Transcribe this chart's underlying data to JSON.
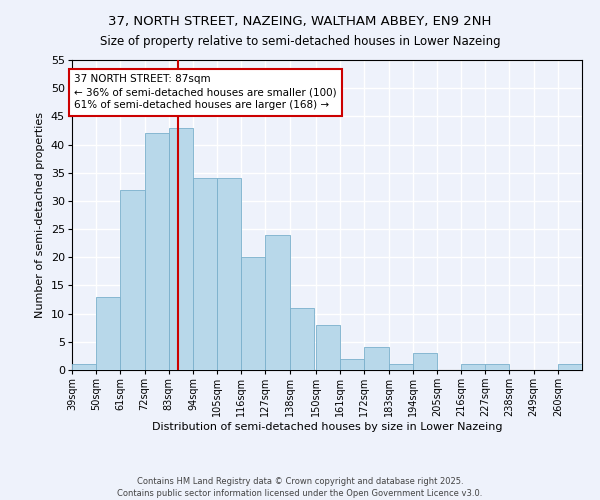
{
  "title": "37, NORTH STREET, NAZEING, WALTHAM ABBEY, EN9 2NH",
  "subtitle": "Size of property relative to semi-detached houses in Lower Nazeing",
  "xlabel": "Distribution of semi-detached houses by size in Lower Nazeing",
  "ylabel": "Number of semi-detached properties",
  "bin_labels": [
    "39sqm",
    "50sqm",
    "61sqm",
    "72sqm",
    "83sqm",
    "94sqm",
    "105sqm",
    "116sqm",
    "127sqm",
    "138sqm",
    "150sqm",
    "161sqm",
    "172sqm",
    "183sqm",
    "194sqm",
    "205sqm",
    "216sqm",
    "227sqm",
    "238sqm",
    "249sqm",
    "260sqm"
  ],
  "bin_edges": [
    39,
    50,
    61,
    72,
    83,
    94,
    105,
    116,
    127,
    138,
    150,
    161,
    172,
    183,
    194,
    205,
    216,
    227,
    238,
    249,
    260
  ],
  "counts": [
    1,
    13,
    32,
    42,
    43,
    34,
    34,
    20,
    24,
    11,
    8,
    2,
    4,
    1,
    3,
    0,
    1,
    1,
    0,
    0,
    1
  ],
  "bar_color": "#b8d8ea",
  "bar_edge_color": "#7ab0cc",
  "vline_x": 87,
  "vline_color": "#cc0000",
  "annotation_line1": "37 NORTH STREET: 87sqm",
  "annotation_line2": "← 36% of semi-detached houses are smaller (100)",
  "annotation_line3": "61% of semi-detached houses are larger (168) →",
  "annotation_box_color": "white",
  "annotation_box_edge": "#cc0000",
  "ylim": [
    0,
    55
  ],
  "yticks": [
    0,
    5,
    10,
    15,
    20,
    25,
    30,
    35,
    40,
    45,
    50,
    55
  ],
  "footer": "Contains HM Land Registry data © Crown copyright and database right 2025.\nContains public sector information licensed under the Open Government Licence v3.0.",
  "bg_color": "#eef2fb",
  "grid_color": "#ffffff"
}
